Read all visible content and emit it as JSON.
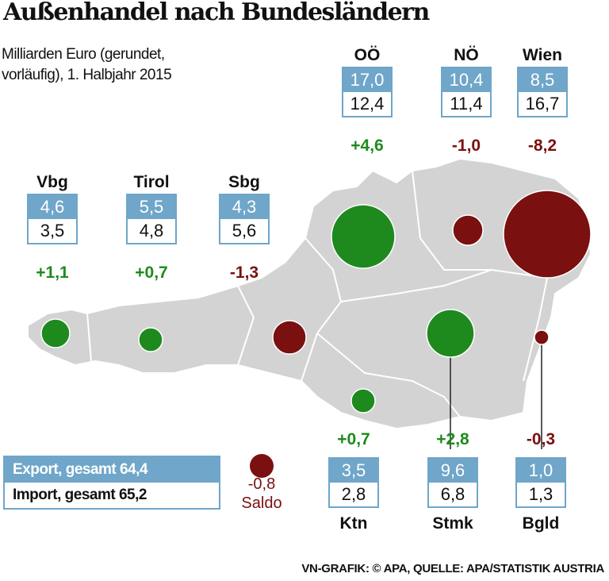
{
  "title": "Außenhandel nach Bundesländern",
  "subtitle": "Milliarden Euro (gerundet, vorläufig), 1. Halbjahr 2015",
  "colors": {
    "export": "#6fa6c9",
    "positive": "#1e8a1e",
    "negative": "#7a1010",
    "map": "#d3d3d3"
  },
  "regions": [
    {
      "name": "Vbg",
      "export": "4,6",
      "import": "3,5",
      "saldo": "+1,1"
    },
    {
      "name": "Tirol",
      "export": "5,5",
      "import": "4,8",
      "saldo": "+0,7"
    },
    {
      "name": "Sbg",
      "export": "4,3",
      "import": "5,6",
      "saldo": "-1,3"
    },
    {
      "name": "OÖ",
      "export": "17,0",
      "import": "12,4",
      "saldo": "+4,6"
    },
    {
      "name": "NÖ",
      "export": "10,4",
      "import": "11,4",
      "saldo": "-1,0"
    },
    {
      "name": "Wien",
      "export": "8,5",
      "import": "16,7",
      "saldo": "-8,2"
    },
    {
      "name": "Ktn",
      "export": "3,5",
      "import": "2,8",
      "saldo": "+0,7"
    },
    {
      "name": "Stmk",
      "export": "9,6",
      "import": "6,8",
      "saldo": "+2,8"
    },
    {
      "name": "Bgld",
      "export": "1,0",
      "import": "1,3",
      "saldo": "-0,3"
    }
  ],
  "totals": {
    "export": "Export, gesamt 64,4",
    "import": "Import, gesamt 65,2",
    "saldo_value": "-0,8",
    "saldo_label": "Saldo"
  },
  "source": "VN-GRAFIK: © APA, QUELLE: APA/STATISTIK AUSTRIA"
}
